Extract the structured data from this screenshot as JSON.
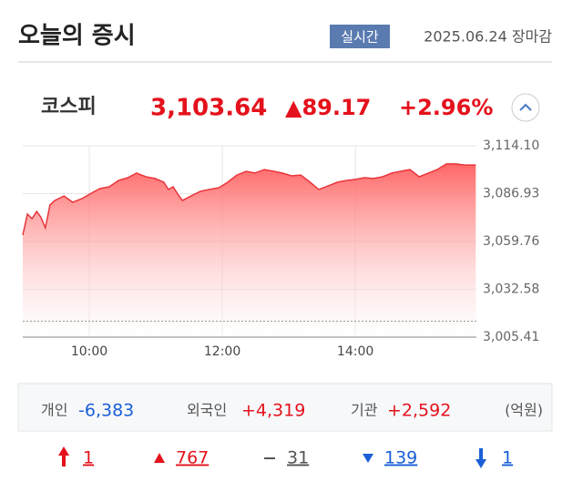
{
  "header": {
    "title": "오늘의 증시",
    "badge": "실시간",
    "date": "2025.06.24 장마감"
  },
  "index": {
    "name": "코스피",
    "value": "3,103.64",
    "change": "▲89.17",
    "percent": "+2.96%"
  },
  "chart_data": {
    "type": "area",
    "color": "#e8353a",
    "x": [
      9.0,
      9.07,
      9.14,
      9.21,
      9.27,
      9.34,
      9.41,
      9.48,
      9.62,
      9.75,
      9.89,
      10.03,
      10.16,
      10.3,
      10.44,
      10.58,
      10.71,
      10.85,
      10.99,
      11.12,
      11.19,
      11.26,
      11.33,
      11.4,
      11.53,
      11.67,
      11.81,
      11.95,
      12.08,
      12.22,
      12.36,
      12.49,
      12.63,
      12.77,
      12.9,
      13.04,
      13.18,
      13.32,
      13.45,
      13.59,
      13.73,
      13.86,
      14.0,
      14.14,
      14.27,
      14.41,
      14.55,
      14.68,
      14.82,
      14.96,
      15.1,
      15.23,
      15.37,
      15.51,
      15.64,
      15.81
    ],
    "values": [
      3063.4,
      3075.3,
      3072.7,
      3076.8,
      3073.7,
      3067.5,
      3080.5,
      3083.0,
      3085.6,
      3082.0,
      3084.1,
      3087.2,
      3089.8,
      3090.8,
      3094.4,
      3096.0,
      3098.6,
      3096.5,
      3095.5,
      3093.4,
      3089.3,
      3090.8,
      3086.7,
      3083.0,
      3085.6,
      3088.2,
      3089.3,
      3090.3,
      3093.4,
      3097.5,
      3099.6,
      3098.6,
      3100.6,
      3099.6,
      3098.6,
      3097.0,
      3097.5,
      3093.4,
      3089.3,
      3091.3,
      3093.4,
      3094.4,
      3095.0,
      3096.0,
      3095.5,
      3096.5,
      3098.6,
      3099.6,
      3100.6,
      3096.5,
      3098.6,
      3100.6,
      3103.8,
      3103.8,
      3103.2,
      3103.2
    ],
    "reference_line": 3014.47,
    "xlim": [
      9,
      15.82
    ],
    "ylim": [
      3005.41,
      3114.1
    ],
    "xticks": [
      {
        "value": 10,
        "label": "10:00"
      },
      {
        "value": 12,
        "label": "12:00"
      },
      {
        "value": 14,
        "label": "14:00"
      }
    ],
    "yticks": [
      {
        "value": 3114.1,
        "label": "3,114.10"
      },
      {
        "value": 3086.93,
        "label": "3,086.93"
      },
      {
        "value": 3059.76,
        "label": "3,059.76"
      },
      {
        "value": 3032.58,
        "label": "3,032.58"
      },
      {
        "value": 3005.41,
        "label": "3,005.41"
      }
    ],
    "grid": true
  },
  "investors": [
    {
      "name": "개인",
      "value": "-6,383"
    },
    {
      "name": "외국인",
      "value": "+4,319"
    },
    {
      "name": "기관",
      "value": "+2,592"
    }
  ],
  "unit": "(억원)",
  "breadth": {
    "upper_limit": "1",
    "up": "767",
    "unchanged": "31",
    "down": "139",
    "lower_limit": "1"
  }
}
